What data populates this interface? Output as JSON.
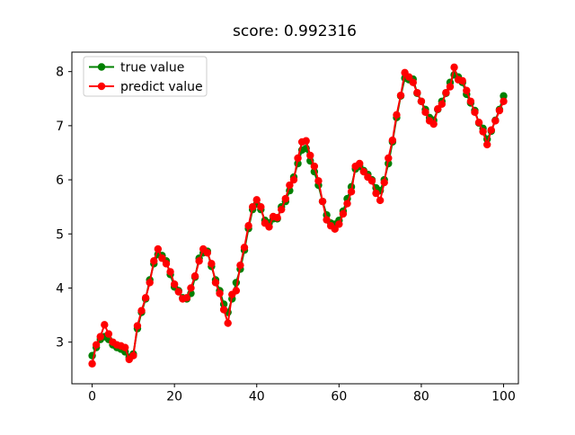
{
  "figure": {
    "background": "#ffffff"
  },
  "chart_data": {
    "type": "line",
    "title": "score: 0.992316",
    "xlabel": "",
    "ylabel": "",
    "grid": false,
    "legend_position": "upper left",
    "xlim": [
      -4.93,
      103.6
    ],
    "ylim": [
      2.23,
      8.36
    ],
    "xticks": [
      0,
      20,
      40,
      60,
      80,
      100
    ],
    "yticks": [
      3,
      4,
      5,
      6,
      7,
      8
    ],
    "x": [
      0,
      1,
      2,
      3,
      4,
      5,
      6,
      7,
      8,
      9,
      10,
      11,
      12,
      13,
      14,
      15,
      16,
      17,
      18,
      19,
      20,
      21,
      22,
      23,
      24,
      25,
      26,
      27,
      28,
      29,
      30,
      31,
      32,
      33,
      34,
      35,
      36,
      37,
      38,
      39,
      40,
      41,
      42,
      43,
      44,
      45,
      46,
      47,
      48,
      49,
      50,
      51,
      52,
      53,
      54,
      55,
      56,
      57,
      58,
      59,
      60,
      61,
      62,
      63,
      64,
      65,
      66,
      67,
      68,
      69,
      70,
      71,
      72,
      73,
      74,
      75,
      76,
      77,
      78,
      79,
      80,
      81,
      82,
      83,
      84,
      85,
      86,
      87,
      88,
      89,
      90,
      91,
      92,
      93,
      94,
      95,
      96,
      97,
      98,
      99,
      100
    ],
    "series": [
      {
        "name": "true value",
        "color": "#008000",
        "marker": "circle",
        "values": [
          2.75,
          2.9,
          3.05,
          3.1,
          3.05,
          2.95,
          2.9,
          2.87,
          2.82,
          2.72,
          2.78,
          3.25,
          3.55,
          3.8,
          4.15,
          4.45,
          4.62,
          4.6,
          4.5,
          4.25,
          4.02,
          3.95,
          3.82,
          3.8,
          3.9,
          4.2,
          4.55,
          4.65,
          4.68,
          4.4,
          4.15,
          3.95,
          3.7,
          3.55,
          3.8,
          4.1,
          4.35,
          4.7,
          5.1,
          5.45,
          5.55,
          5.45,
          5.25,
          5.2,
          5.28,
          5.28,
          5.5,
          5.6,
          5.8,
          6.05,
          6.3,
          6.55,
          6.58,
          6.35,
          6.15,
          5.9,
          5.6,
          5.35,
          5.2,
          5.18,
          5.25,
          5.42,
          5.65,
          5.87,
          6.2,
          6.25,
          6.17,
          6.1,
          6.0,
          5.85,
          5.8,
          6.0,
          6.3,
          6.7,
          7.15,
          7.55,
          7.88,
          7.85,
          7.86,
          7.6,
          7.45,
          7.3,
          7.15,
          7.1,
          7.3,
          7.45,
          7.6,
          7.8,
          7.94,
          7.9,
          7.8,
          7.58,
          7.42,
          7.28,
          7.05,
          6.95,
          6.75,
          6.9,
          7.1,
          7.3,
          7.55
        ]
      },
      {
        "name": "predict value",
        "color": "#ff0000",
        "marker": "circle",
        "values": [
          2.6,
          2.95,
          3.1,
          3.32,
          3.15,
          3.0,
          2.95,
          2.93,
          2.9,
          2.68,
          2.75,
          3.3,
          3.58,
          3.82,
          4.1,
          4.5,
          4.72,
          4.55,
          4.45,
          4.3,
          4.07,
          3.93,
          3.8,
          3.82,
          4.0,
          4.22,
          4.5,
          4.72,
          4.65,
          4.45,
          4.1,
          3.9,
          3.6,
          3.35,
          3.88,
          3.95,
          4.42,
          4.75,
          5.15,
          5.5,
          5.63,
          5.5,
          5.2,
          5.13,
          5.32,
          5.3,
          5.45,
          5.65,
          5.9,
          6.0,
          6.4,
          6.7,
          6.72,
          6.45,
          6.25,
          5.98,
          5.6,
          5.26,
          5.15,
          5.09,
          5.18,
          5.37,
          5.56,
          5.78,
          6.25,
          6.3,
          6.15,
          6.05,
          5.98,
          5.75,
          5.62,
          5.95,
          6.4,
          6.73,
          7.2,
          7.56,
          7.98,
          7.9,
          7.8,
          7.61,
          7.45,
          7.25,
          7.09,
          7.03,
          7.31,
          7.4,
          7.61,
          7.72,
          8.08,
          7.85,
          7.83,
          7.65,
          7.45,
          7.25,
          7.06,
          6.89,
          6.65,
          6.92,
          7.09,
          7.28,
          7.45
        ]
      }
    ]
  }
}
